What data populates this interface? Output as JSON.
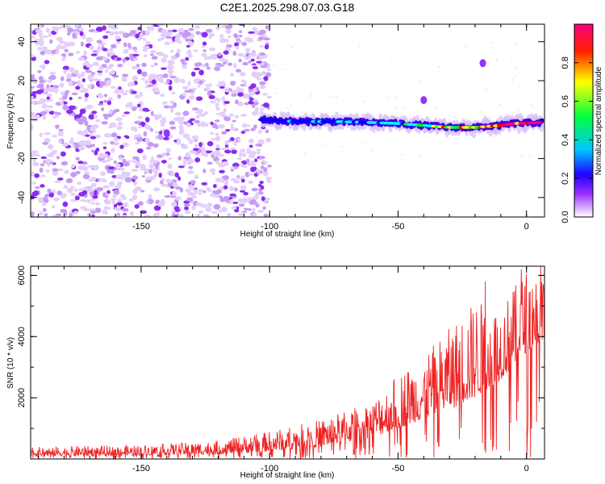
{
  "figure": {
    "title": "C2E1.2025.298.07.03.G18"
  },
  "chart_data": [
    {
      "type": "heatmap",
      "title": "C2E1.2025.298.07.03.G18",
      "xlabel": "Height of straight line (km)",
      "ylabel": "Frequency (Hz)",
      "xlim": [
        -193,
        7
      ],
      "ylim": [
        -50,
        49
      ],
      "x_ticks": [
        -150,
        -100,
        -50,
        0
      ],
      "x_tick_labels": [
        "-150",
        "-100",
        "-50",
        "0"
      ],
      "y_ticks": [
        -40,
        -20,
        0,
        20,
        40
      ],
      "y_tick_labels": [
        "-40",
        "-20",
        "0",
        "20",
        "40"
      ],
      "colorbar": {
        "label": "Normalized spectral amplitude",
        "range": [
          0,
          1
        ],
        "ticks": [
          0.0,
          0.2,
          0.4,
          0.6,
          0.8
        ],
        "tick_labels": [
          "0.0",
          "0.2",
          "0.4",
          "0.6",
          "0.8"
        ],
        "colors": [
          "#ffffff",
          "#7a00ff",
          "#0000ff",
          "#00ffff",
          "#00ff00",
          "#ffff00",
          "#ff0000",
          "#ff0080"
        ]
      },
      "features": {
        "noise_region_x": [
          -193,
          -100
        ],
        "signal_ridge": [
          {
            "x": -103,
            "freq": 0,
            "amp": 0.25
          },
          {
            "x": -90,
            "freq": -1,
            "amp": 0.3
          },
          {
            "x": -75,
            "freq": -1,
            "amp": 0.35
          },
          {
            "x": -60,
            "freq": -1.5,
            "amp": 0.4
          },
          {
            "x": -50,
            "freq": -2,
            "amp": 0.45
          },
          {
            "x": -40,
            "freq": -3,
            "amp": 0.55
          },
          {
            "x": -30,
            "freq": -4,
            "amp": 0.65
          },
          {
            "x": -20,
            "freq": -4,
            "amp": 0.8
          },
          {
            "x": -10,
            "freq": -3,
            "amp": 0.85
          },
          {
            "x": -5,
            "freq": -2,
            "amp": 0.95
          },
          {
            "x": 6,
            "freq": -1.5,
            "amp": 1.0
          }
        ],
        "outliers": [
          {
            "x": -40,
            "freq": 10,
            "amp": 0.25
          },
          {
            "x": -17,
            "freq": 29,
            "amp": 0.25
          },
          {
            "x": -140,
            "freq": -7,
            "amp": 0.3
          }
        ]
      }
    },
    {
      "type": "line",
      "xlabel": "Height of straight line (km)",
      "ylabel": "SNR (10 * v/v)",
      "xlim": [
        -193,
        7
      ],
      "ylim": [
        0,
        6300
      ],
      "x_ticks": [
        -150,
        -100,
        -50,
        0
      ],
      "x_tick_labels": [
        "-150",
        "-100",
        "-50",
        "0"
      ],
      "y_ticks": [
        2000,
        4000,
        6000
      ],
      "y_tick_labels": [
        "2000",
        "4000",
        "6000"
      ],
      "color": "#ee2222",
      "envelope": [
        {
          "x": -193,
          "base": 80,
          "max": 400
        },
        {
          "x": -150,
          "base": 120,
          "max": 450
        },
        {
          "x": -120,
          "base": 150,
          "max": 600
        },
        {
          "x": -100,
          "base": 250,
          "max": 900
        },
        {
          "x": -80,
          "base": 400,
          "max": 1300
        },
        {
          "x": -60,
          "base": 700,
          "max": 1900
        },
        {
          "x": -50,
          "base": 1000,
          "max": 2800
        },
        {
          "x": -40,
          "base": 1300,
          "max": 3400
        },
        {
          "x": -30,
          "base": 1600,
          "max": 4300
        },
        {
          "x": -20,
          "base": 2000,
          "max": 5200
        },
        {
          "x": -10,
          "base": 2600,
          "max": 5000
        },
        {
          "x": 0,
          "base": 3500,
          "max": 6200
        },
        {
          "x": 7,
          "base": 3900,
          "max": 6300
        }
      ],
      "peaks": [
        {
          "x": -16,
          "value": 5800
        },
        {
          "x": -2,
          "value": 6200
        },
        {
          "x": 5.5,
          "value": 6300
        }
      ]
    }
  ]
}
